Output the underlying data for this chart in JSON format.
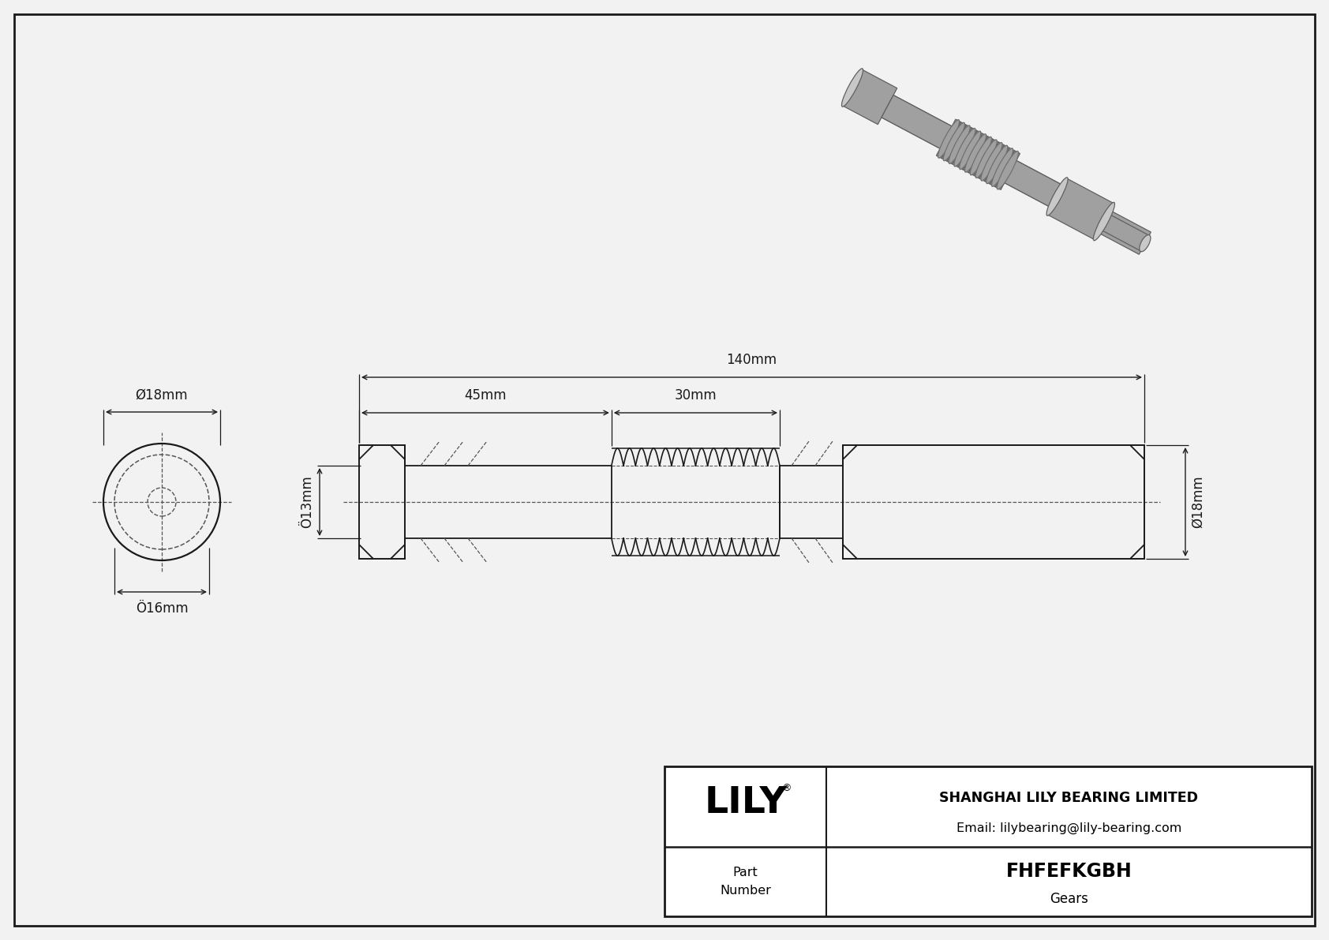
{
  "bg_color": "#f2f2f2",
  "line_color": "#1a1a1a",
  "dashed_color": "#555555",
  "gray_3d_light": "#c8c8c8",
  "gray_3d_mid": "#a0a0a0",
  "gray_3d_dark": "#707070",
  "company": "SHANGHAI LILY BEARING LIMITED",
  "email": "Email: lilybearing@lily-bearing.com",
  "part_label": "Part\nNumber",
  "part_number": "FHFEFKGBH",
  "category": "Gears",
  "dim_140": "140mm",
  "dim_45": "45mm",
  "dim_30": "30mm",
  "dim_18_top": "Ø18mm",
  "dim_18_right": "Ø18mm",
  "dim_16": "Ö16mm",
  "dim_13": "Ö13mm"
}
